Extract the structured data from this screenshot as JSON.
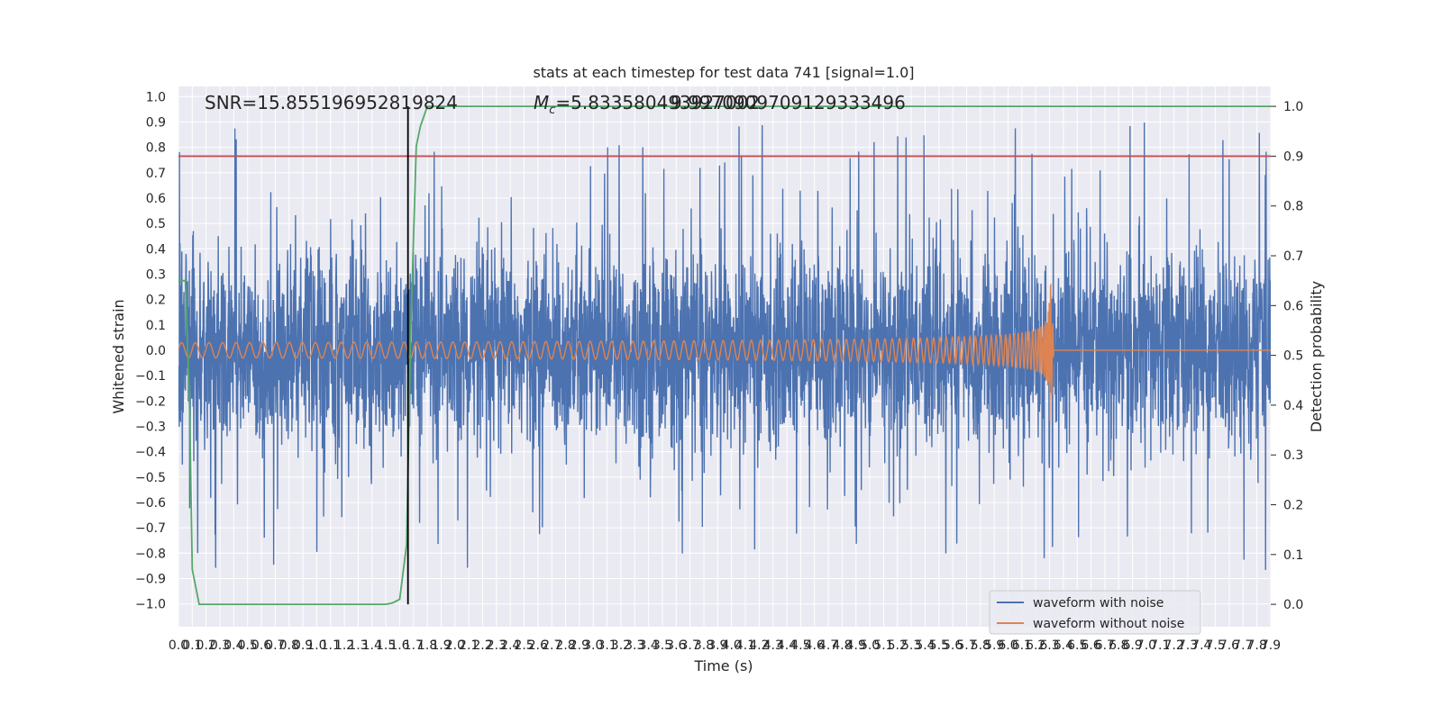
{
  "chart_data": {
    "type": "line",
    "title": "stats at each timestep for test data 741 [signal=1.0]",
    "xlabel": "Time (s)",
    "ylabel": "Whitened strain",
    "y2label": "Detection probability",
    "xlim": [
      0.0,
      7.9
    ],
    "ylim": [
      -1.09,
      1.04
    ],
    "y2lim": [
      -0.045,
      1.04
    ],
    "x_tick_values": [
      0.0,
      0.1,
      0.2,
      0.3,
      0.4,
      0.5,
      0.6,
      0.7,
      0.8,
      0.9,
      1.0,
      1.1,
      1.2,
      1.3,
      1.4,
      1.5,
      1.6,
      1.7,
      1.8,
      1.9,
      2.0,
      2.1,
      2.2,
      2.3,
      2.4,
      2.5,
      2.6,
      2.7,
      2.8,
      2.9,
      3.0,
      3.1,
      3.2,
      3.3,
      3.4,
      3.5,
      3.6,
      3.7,
      3.8,
      3.9,
      4.0,
      4.1,
      4.2,
      4.3,
      4.4,
      4.5,
      4.6,
      4.7,
      4.8,
      4.9,
      5.0,
      5.1,
      5.2,
      5.3,
      5.4,
      5.5,
      5.6,
      5.7,
      5.8,
      5.9,
      6.0,
      6.1,
      6.2,
      6.3,
      6.4,
      6.5,
      6.6,
      6.7,
      6.8,
      6.9,
      7.0,
      7.1,
      7.2,
      7.3,
      7.4,
      7.5,
      7.6,
      7.7,
      7.8,
      7.9
    ],
    "x_tick_labels": [
      "0.0",
      "0.1",
      "0.2",
      "0.3",
      "0.4",
      "0.5",
      "0.6",
      "0.7",
      "0.8",
      "0.9",
      "1.0",
      "1.1",
      "1.2",
      "1.3",
      "1.4",
      "1.5",
      "1.6",
      "1.7",
      "1.8",
      "1.9",
      "2.0",
      "2.1",
      "2.2",
      "2.3",
      "2.4",
      "2.5",
      "2.6",
      "2.7",
      "2.8",
      "2.9",
      "3.0",
      "3.1",
      "3.2",
      "3.3",
      "3.4",
      "3.5",
      "3.6",
      "3.7",
      "3.8",
      "3.9",
      "4.0",
      "4.1",
      "4.2",
      "4.3",
      "4.4",
      "4.5",
      "4.6",
      "4.7",
      "4.8",
      "4.9",
      "5.0",
      "5.1",
      "5.2",
      "5.3",
      "5.4",
      "5.5",
      "5.6",
      "5.7",
      "5.8",
      "5.9",
      "6.0",
      "6.1",
      "6.2",
      "6.3",
      "6.4",
      "6.5",
      "6.6",
      "6.7",
      "6.8",
      "6.9",
      "7.0",
      "7.1",
      "7.2",
      "7.3",
      "7.4",
      "7.5",
      "7.6",
      "7.7",
      "7.8",
      "7.9"
    ],
    "y_tick_values": [
      1.0,
      0.9,
      0.8,
      0.7,
      0.6,
      0.5,
      0.4,
      0.3,
      0.2,
      0.1,
      0.0,
      -0.1,
      -0.2,
      -0.3,
      -0.4,
      -0.5,
      -0.6,
      -0.7,
      -0.8,
      -0.9,
      -1.0
    ],
    "y_tick_labels": [
      "1.0",
      "0.9",
      "0.8",
      "0.7",
      "0.6",
      "0.5",
      "0.4",
      "0.3",
      "0.2",
      "0.1",
      "0.0",
      "−0.1",
      "−0.2",
      "−0.3",
      "−0.4",
      "−0.5",
      "−0.6",
      "−0.7",
      "−0.8",
      "−0.9",
      "−1.0"
    ],
    "y2_tick_values": [
      1.0,
      0.9,
      0.8,
      0.7,
      0.6,
      0.5,
      0.4,
      0.3,
      0.2,
      0.1,
      0.0
    ],
    "y2_tick_labels": [
      "1.0",
      "0.9",
      "0.8",
      "0.7",
      "0.6",
      "0.5",
      "0.4",
      "0.3",
      "0.2",
      "0.1",
      "0.0"
    ],
    "grid": true,
    "legend_position": "lower-right",
    "annotations": {
      "snr": "SNR=15.855196952819824",
      "mc_prefix": "M",
      "mc_subscript": "c",
      "mc_value": "=5.833580493927002",
      "overlap": "9.9970909709129333496"
    },
    "series": [
      {
        "name": "waveform with noise",
        "color": "#4c72b0",
        "axis": "left",
        "kind": "noise",
        "typical_abs_amplitude": 0.35,
        "max": 0.93,
        "min": -0.97
      },
      {
        "name": "waveform without noise",
        "color": "#dd8452",
        "axis": "left",
        "kind": "chirp",
        "start_amplitude": 0.03,
        "merger_time": 6.3,
        "peak_max": 0.37,
        "peak_min": -0.45,
        "post_merger_value": 0.0
      },
      {
        "name": "detection probability",
        "color": "#55a868",
        "axis": "right",
        "x": [
          0.0,
          0.05,
          0.08,
          0.1,
          0.15,
          0.2,
          0.3,
          0.6,
          1.0,
          1.4,
          1.5,
          1.55,
          1.6,
          1.65,
          1.68,
          1.72,
          1.75,
          1.8,
          2.0,
          7.9
        ],
        "y": [
          0.65,
          0.65,
          0.4,
          0.07,
          0.0,
          0.0,
          0.0,
          0.0,
          0.0,
          0.0,
          0.0,
          0.003,
          0.01,
          0.12,
          0.55,
          0.92,
          0.96,
          1.0,
          1.0,
          1.0
        ]
      },
      {
        "name": "threshold",
        "color": "#c44e52",
        "axis": "right",
        "x": [
          0.0,
          7.9
        ],
        "y": [
          0.9,
          0.9
        ]
      }
    ],
    "vertical_marker": {
      "x": 1.66,
      "color": "#000000"
    }
  }
}
